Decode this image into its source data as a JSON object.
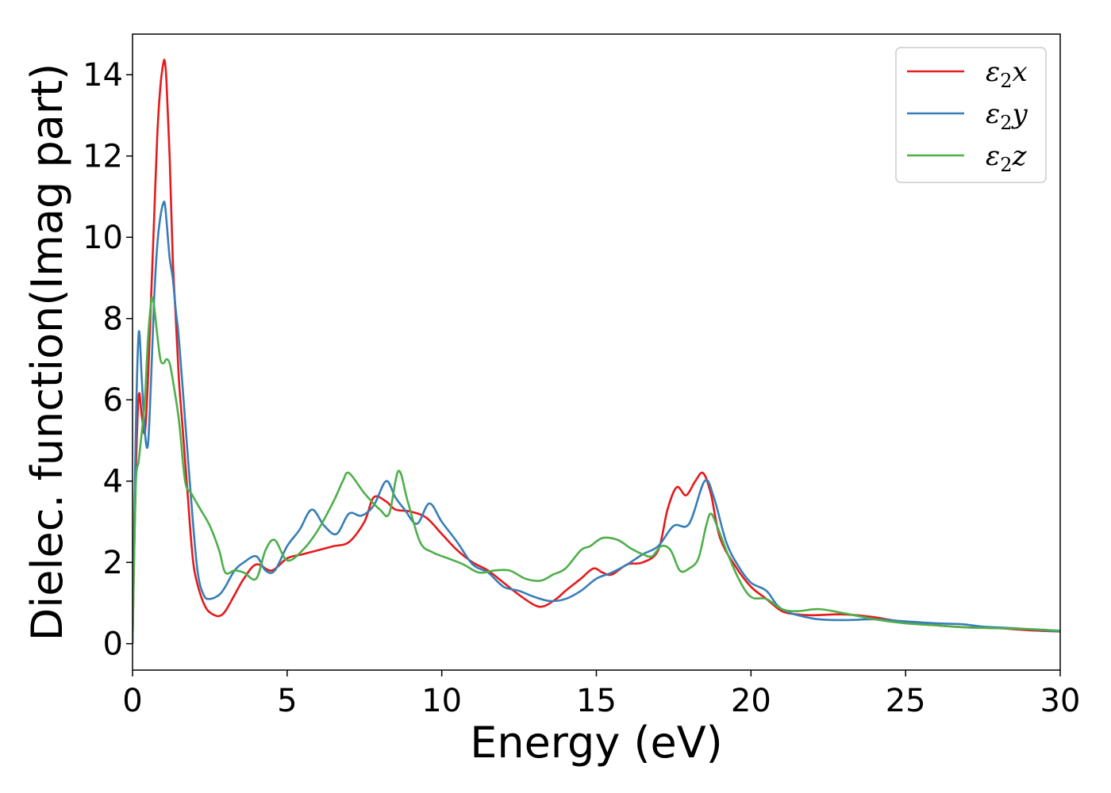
{
  "chart_data": {
    "type": "line",
    "title": "",
    "xlabel": "Energy (eV)",
    "ylabel": "Dielec. function(Imag part)",
    "xlim": [
      0,
      30
    ],
    "ylim": [
      -0.65,
      15.0
    ],
    "xticks": [
      0,
      5,
      10,
      15,
      20,
      25,
      30
    ],
    "yticks": [
      0,
      2,
      4,
      6,
      8,
      10,
      12,
      14
    ],
    "grid": false,
    "legend_position": "top-right",
    "series": [
      {
        "name": "ε2x",
        "legend_base": "ε",
        "legend_sub": "2",
        "legend_suffix": "x",
        "color": "#e41a1c",
        "x": [
          0,
          0.1,
          0.2,
          0.3,
          0.4,
          0.5,
          0.6,
          0.7,
          0.8,
          0.9,
          1.0,
          1.05,
          1.1,
          1.2,
          1.3,
          1.4,
          1.5,
          1.6,
          1.7,
          1.8,
          1.9,
          2.0,
          2.2,
          2.4,
          2.6,
          2.8,
          3.0,
          3.3,
          3.6,
          4.0,
          4.5,
          5.0,
          5.5,
          6.0,
          6.5,
          7.0,
          7.5,
          7.8,
          8.2,
          8.5,
          9.0,
          9.5,
          10.0,
          10.5,
          11.0,
          11.5,
          12.0,
          12.5,
          13.0,
          13.3,
          13.7,
          14.0,
          14.5,
          14.9,
          15.2,
          15.5,
          16.0,
          16.5,
          17.0,
          17.3,
          17.6,
          17.9,
          18.2,
          18.45,
          18.7,
          19.0,
          19.5,
          20.0,
          20.5,
          21.0,
          21.5,
          22.0,
          23.0,
          24.0,
          25.0,
          26.0,
          27.0,
          28.0,
          29.0,
          30.0
        ],
        "y": [
          0,
          4.0,
          6.1,
          5.6,
          5.2,
          6.5,
          8.5,
          10.5,
          12.5,
          13.7,
          14.3,
          14.3,
          13.8,
          12.0,
          9.5,
          8.0,
          6.5,
          5.5,
          4.5,
          3.5,
          2.5,
          1.8,
          1.2,
          0.85,
          0.72,
          0.68,
          0.8,
          1.2,
          1.6,
          1.95,
          1.8,
          2.1,
          2.2,
          2.3,
          2.4,
          2.5,
          3.0,
          3.6,
          3.5,
          3.3,
          3.25,
          3.1,
          2.7,
          2.3,
          2.0,
          1.8,
          1.5,
          1.2,
          0.95,
          0.92,
          1.1,
          1.3,
          1.6,
          1.85,
          1.75,
          1.7,
          1.95,
          2.0,
          2.3,
          3.3,
          3.85,
          3.65,
          4.0,
          4.2,
          3.7,
          2.6,
          1.9,
          1.4,
          1.1,
          0.8,
          0.72,
          0.7,
          0.72,
          0.65,
          0.52,
          0.45,
          0.4,
          0.38,
          0.33,
          0.3
        ]
      },
      {
        "name": "ε2y",
        "legend_base": "ε",
        "legend_sub": "2",
        "legend_suffix": "y",
        "color": "#377eb8",
        "x": [
          0,
          0.1,
          0.2,
          0.3,
          0.4,
          0.5,
          0.6,
          0.7,
          0.8,
          0.9,
          1.0,
          1.05,
          1.1,
          1.2,
          1.3,
          1.4,
          1.5,
          1.7,
          1.9,
          2.1,
          2.3,
          2.5,
          2.8,
          3.0,
          3.3,
          3.6,
          4.0,
          4.3,
          4.6,
          5.0,
          5.4,
          5.8,
          6.2,
          6.6,
          7.0,
          7.4,
          7.8,
          8.2,
          8.5,
          8.8,
          9.2,
          9.6,
          10.0,
          10.5,
          11.0,
          11.5,
          12.0,
          12.5,
          13.0,
          13.5,
          14.0,
          14.5,
          15.0,
          15.5,
          16.0,
          16.5,
          17.0,
          17.5,
          18.0,
          18.5,
          18.8,
          19.2,
          19.6,
          20.0,
          20.5,
          21.0,
          22.0,
          23.0,
          24.0,
          25.0,
          26.0,
          26.8,
          27.5,
          28.5,
          30.0
        ],
        "y": [
          0,
          5.0,
          7.65,
          6.5,
          5.2,
          4.9,
          6.5,
          8.5,
          9.8,
          10.5,
          10.85,
          10.8,
          10.4,
          9.5,
          9.0,
          8.2,
          7.5,
          5.5,
          3.5,
          1.8,
          1.2,
          1.1,
          1.2,
          1.4,
          1.8,
          2.0,
          2.15,
          1.8,
          1.8,
          2.4,
          2.8,
          3.3,
          2.9,
          2.7,
          3.2,
          3.15,
          3.4,
          4.0,
          3.6,
          3.3,
          2.95,
          3.45,
          3.0,
          2.5,
          1.95,
          1.75,
          1.4,
          1.3,
          1.15,
          1.05,
          1.1,
          1.3,
          1.6,
          1.75,
          1.95,
          2.2,
          2.4,
          2.9,
          2.95,
          4.0,
          3.6,
          2.5,
          1.9,
          1.5,
          1.3,
          0.85,
          0.62,
          0.58,
          0.6,
          0.55,
          0.5,
          0.48,
          0.42,
          0.38,
          0.3
        ]
      },
      {
        "name": "ε2z",
        "legend_base": "ε",
        "legend_sub": "2",
        "legend_suffix": "z",
        "color": "#4daf4a",
        "x": [
          0,
          0.1,
          0.2,
          0.3,
          0.4,
          0.5,
          0.6,
          0.65,
          0.7,
          0.8,
          0.9,
          1.0,
          1.1,
          1.2,
          1.3,
          1.5,
          1.7,
          1.9,
          2.2,
          2.5,
          2.8,
          3.0,
          3.3,
          3.6,
          4.0,
          4.3,
          4.6,
          5.0,
          5.5,
          6.0,
          6.5,
          6.8,
          7.0,
          7.5,
          8.0,
          8.3,
          8.6,
          8.9,
          9.3,
          9.7,
          10.2,
          10.7,
          11.2,
          11.7,
          12.2,
          12.7,
          13.2,
          13.6,
          14.0,
          14.5,
          14.8,
          15.2,
          15.7,
          16.1,
          16.5,
          16.8,
          17.1,
          17.4,
          17.7,
          18.0,
          18.3,
          18.55,
          18.7,
          18.9,
          19.2,
          19.6,
          20.0,
          20.5,
          21.0,
          21.5,
          22.2,
          23.0,
          24.0,
          25.0,
          26.0,
          27.0,
          28.0,
          29.0,
          30.0
        ],
        "y": [
          0,
          3.8,
          4.5,
          5.2,
          6.0,
          7.5,
          8.4,
          8.5,
          8.3,
          7.6,
          7.0,
          6.9,
          7.0,
          6.9,
          6.5,
          5.5,
          4.0,
          3.7,
          3.3,
          2.9,
          2.3,
          1.75,
          1.8,
          1.75,
          1.6,
          2.3,
          2.55,
          2.05,
          2.3,
          2.8,
          3.5,
          4.0,
          4.2,
          3.7,
          3.3,
          3.2,
          4.25,
          3.5,
          2.5,
          2.25,
          2.1,
          1.95,
          1.75,
          1.8,
          1.8,
          1.6,
          1.55,
          1.7,
          1.85,
          2.3,
          2.4,
          2.6,
          2.55,
          2.35,
          2.2,
          2.15,
          2.4,
          2.3,
          1.8,
          1.85,
          2.1,
          2.9,
          3.2,
          2.9,
          2.3,
          1.6,
          1.15,
          1.1,
          0.85,
          0.8,
          0.85,
          0.75,
          0.6,
          0.5,
          0.45,
          0.4,
          0.38,
          0.36,
          0.32
        ]
      }
    ]
  }
}
